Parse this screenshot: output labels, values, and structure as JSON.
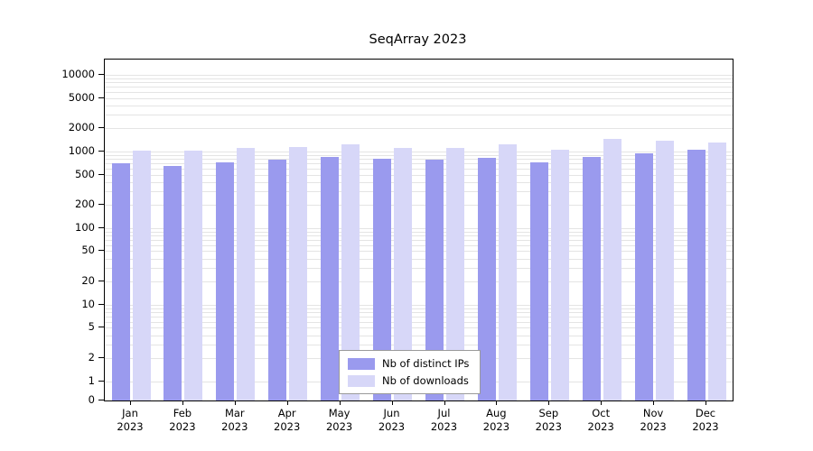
{
  "chart_data": {
    "type": "bar",
    "title": "SeqArray 2023",
    "scale": "symlog",
    "grid": true,
    "legend_position": "bottom-center-inside",
    "categories": [
      "Jan",
      "Feb",
      "Mar",
      "Apr",
      "May",
      "Jun",
      "Jul",
      "Aug",
      "Sep",
      "Oct",
      "Nov",
      "Dec"
    ],
    "category_year": "2023",
    "yticks": [
      0,
      1,
      2,
      5,
      10,
      20,
      50,
      100,
      200,
      500,
      1000,
      2000,
      5000,
      10000
    ],
    "ylim": [
      0,
      10000
    ],
    "series": [
      {
        "name": "Nb of distinct IPs",
        "color": "#9a9aee",
        "values": [
          700,
          650,
          730,
          790,
          840,
          800,
          780,
          820,
          720,
          840,
          950,
          1050
        ]
      },
      {
        "name": "Nb of downloads",
        "color": "#d7d7f8",
        "values": [
          1020,
          1020,
          1100,
          1150,
          1250,
          1120,
          1100,
          1230,
          1050,
          1450,
          1400,
          1300
        ]
      }
    ]
  }
}
